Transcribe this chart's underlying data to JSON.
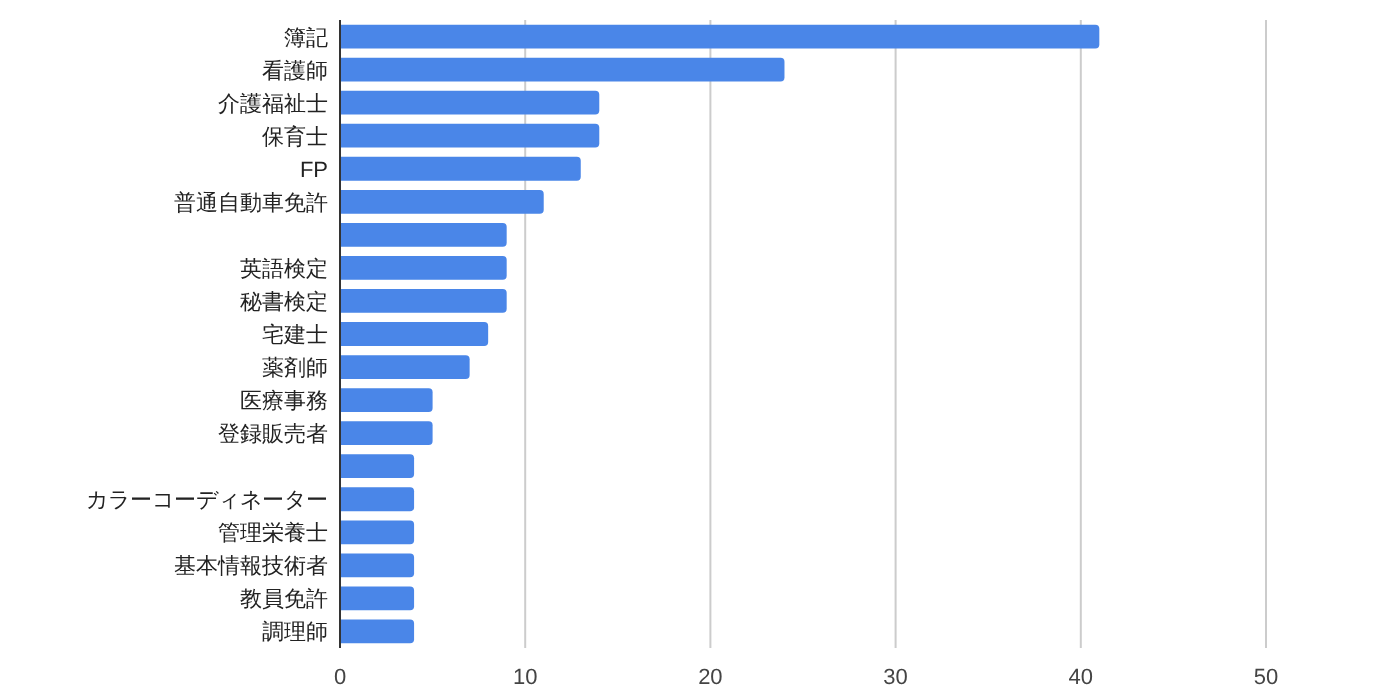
{
  "chart_data": {
    "type": "bar",
    "orientation": "horizontal",
    "categories": [
      "簿記",
      "看護師",
      "介護福祉士",
      "保育士",
      "FP",
      "普通自動車免許",
      null,
      "英語検定",
      "秘書検定",
      "宅建士",
      "薬剤師",
      "医療事務",
      "登録販売者",
      null,
      "カラーコーディネーター",
      "管理栄養士",
      "基本情報技術者",
      "教員免許",
      "調理師"
    ],
    "values": [
      41,
      24,
      14,
      14,
      13,
      11,
      9,
      9,
      9,
      8,
      7,
      5,
      5,
      4,
      4,
      4,
      4,
      4,
      4
    ],
    "color": "#4a86e8",
    "xlim": [
      0,
      50
    ],
    "xticks": [
      0,
      10,
      20,
      30,
      40,
      50
    ],
    "grid": "x"
  }
}
